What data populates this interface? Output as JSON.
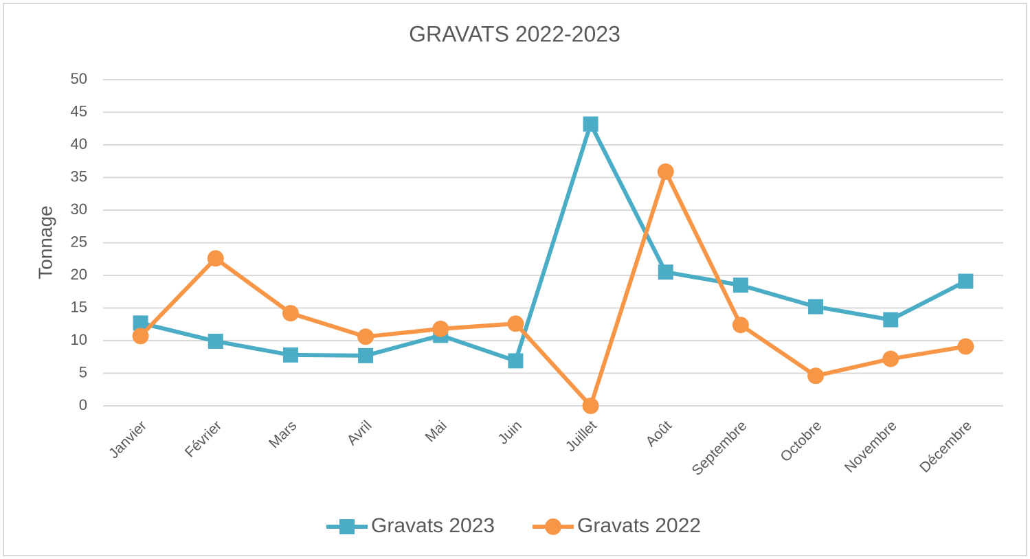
{
  "chart_data": {
    "type": "line",
    "title": "GRAVATS 2022-2023",
    "y_label": "Tonnage",
    "categories": [
      "Janvier",
      "Février",
      "Mars",
      "Avril",
      "Mai",
      "Juin",
      "Juillet",
      "Août",
      "Septembre",
      "Octobre",
      "Novembre",
      "Décembre"
    ],
    "series": [
      {
        "name": "Gravats 2023",
        "color": "#4bacc6",
        "marker": "square",
        "values": [
          12.7,
          9.9,
          7.8,
          7.7,
          10.8,
          6.9,
          43.2,
          20.5,
          18.5,
          15.2,
          13.2,
          19.1
        ]
      },
      {
        "name": "Gravats 2022",
        "color": "#f79646",
        "marker": "circle",
        "values": [
          10.7,
          22.6,
          14.2,
          10.6,
          11.8,
          12.6,
          0,
          35.9,
          12.4,
          4.6,
          7.2,
          9.1
        ]
      }
    ],
    "ylim": [
      0,
      50
    ],
    "yticks": [
      0,
      5,
      10,
      15,
      20,
      25,
      30,
      35,
      40,
      45,
      50
    ],
    "grid": true,
    "legend": "bottom"
  }
}
